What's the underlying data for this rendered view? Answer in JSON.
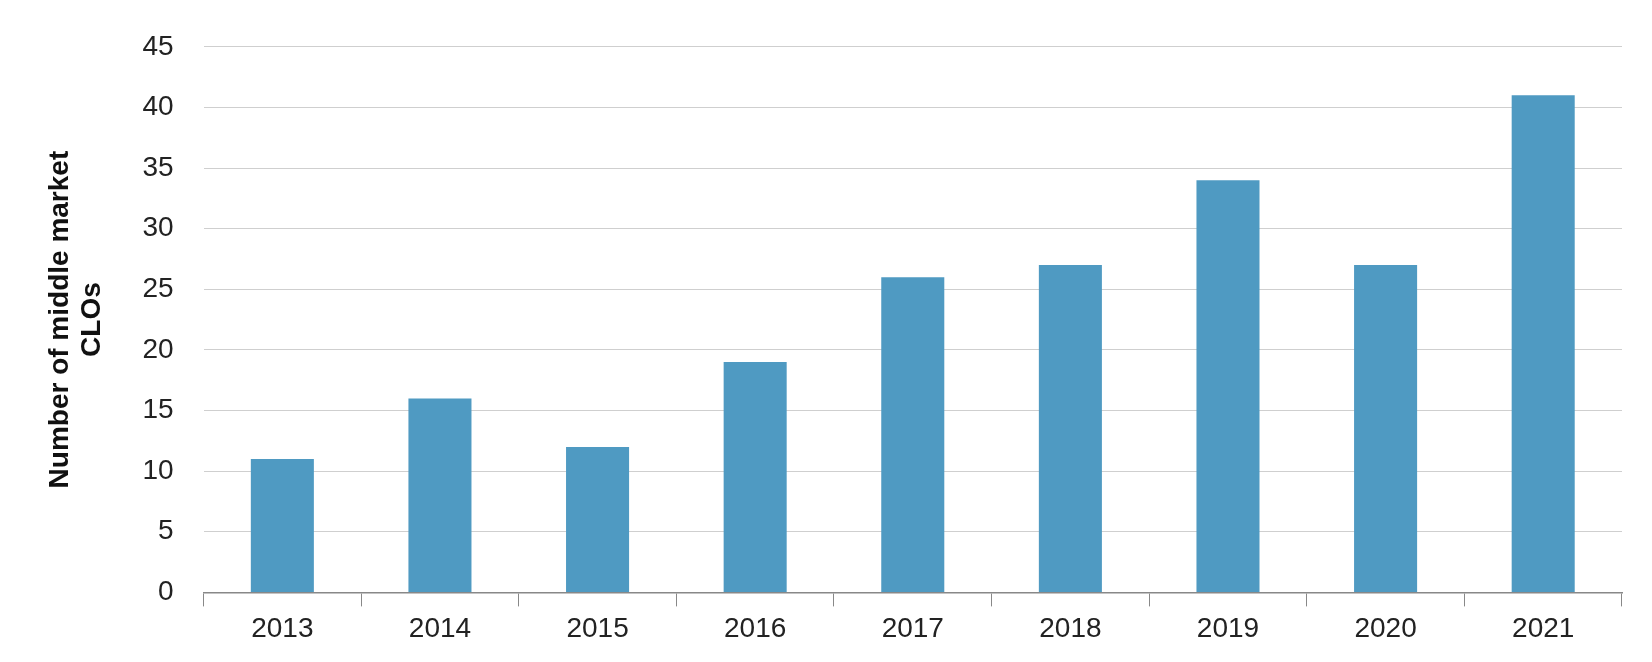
{
  "chart_data": {
    "type": "bar",
    "ylabel": "Number of middle market CLOs",
    "categories": [
      "2013",
      "2014",
      "2015",
      "2016",
      "2017",
      "2018",
      "2019",
      "2020",
      "2021"
    ],
    "values": [
      11,
      16,
      12,
      19,
      26,
      27,
      34,
      27,
      41
    ],
    "color": "#4f9ac2",
    "ylim": [
      0,
      45
    ],
    "yticks": [
      0,
      5,
      10,
      15,
      20,
      25,
      30,
      35,
      40,
      45
    ],
    "grid": "y",
    "legend": false
  }
}
